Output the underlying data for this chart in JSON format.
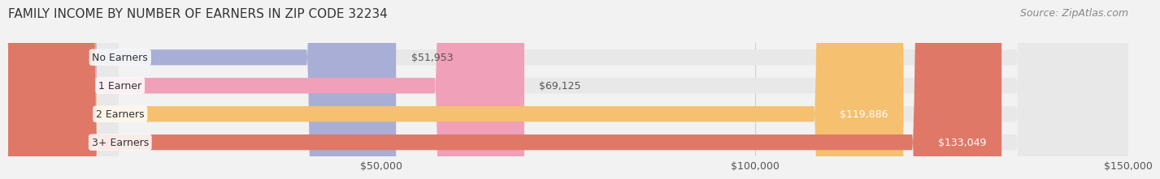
{
  "title": "FAMILY INCOME BY NUMBER OF EARNERS IN ZIP CODE 32234",
  "source": "Source: ZipAtlas.com",
  "categories": [
    "No Earners",
    "1 Earner",
    "2 Earners",
    "3+ Earners"
  ],
  "values": [
    51953,
    69125,
    119886,
    133049
  ],
  "bar_colors": [
    "#a8aed6",
    "#f0a0b8",
    "#f5c070",
    "#e07868"
  ],
  "label_colors": [
    "#555555",
    "#555555",
    "#ffffff",
    "#ffffff"
  ],
  "xmin": 0,
  "xmax": 150000,
  "xticks": [
    50000,
    100000,
    150000
  ],
  "xtick_labels": [
    "$50,000",
    "$100,000",
    "$150,000"
  ],
  "background_color": "#f2f2f2",
  "bar_background_color": "#e8e8e8",
  "title_fontsize": 11,
  "source_fontsize": 9,
  "tick_fontsize": 9,
  "label_fontsize": 9,
  "category_fontsize": 9
}
